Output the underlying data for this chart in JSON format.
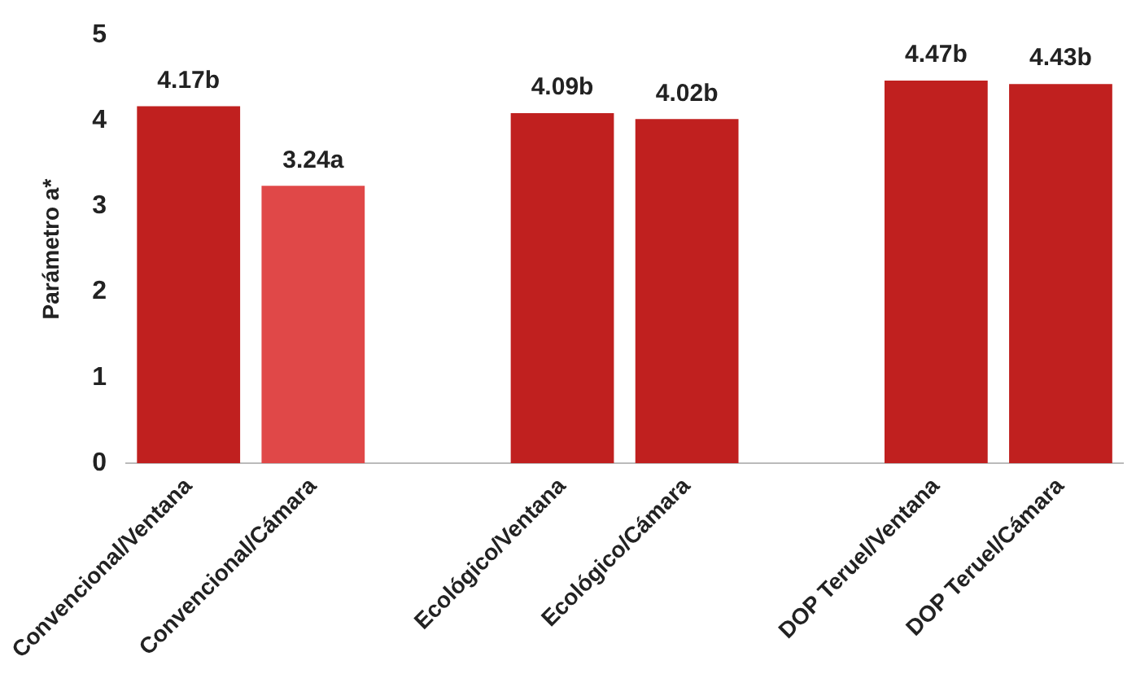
{
  "chart_data": {
    "type": "bar",
    "ylabel": "Parámetro a*",
    "categories": [
      "Convencional/Ventana",
      "Convencional/Cámara",
      null,
      "Ecológico/Ventana",
      "Ecológico/Cámara",
      null,
      "DOP Teruel/Ventana",
      "DOP Teruel/Cámara"
    ],
    "values": [
      4.17,
      3.24,
      null,
      4.09,
      4.02,
      null,
      4.47,
      4.43
    ],
    "value_labels": [
      "4.17b",
      "3.24a",
      null,
      "4.09b",
      "4.02b",
      null,
      "4.47b",
      "4.43b"
    ],
    "colors": [
      "#c0201f",
      "#e04848",
      null,
      "#c0201f",
      "#c0201f",
      null,
      "#c0201f",
      "#c0201f"
    ],
    "ylim": [
      0,
      5
    ],
    "yticks": [
      0,
      1,
      2,
      3,
      4,
      5
    ],
    "grid": false,
    "legend": false
  }
}
